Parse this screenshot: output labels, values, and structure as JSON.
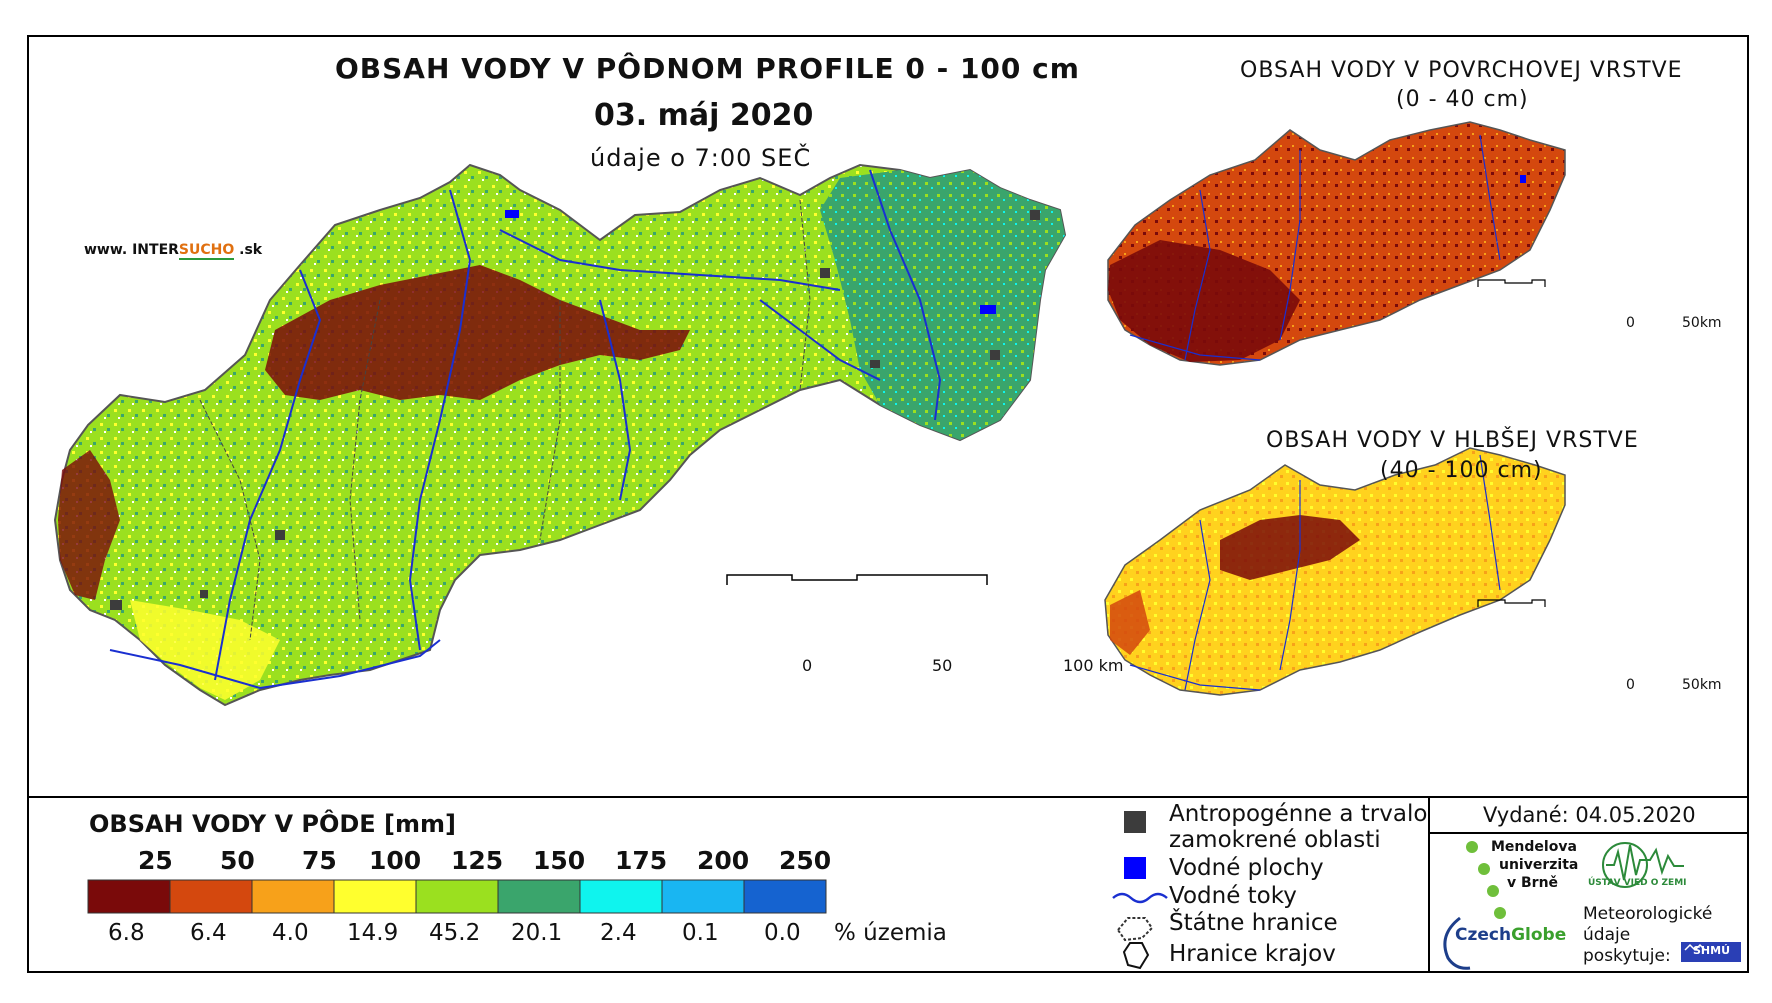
{
  "main_map": {
    "title": "OBSAH VODY V PÔDNOM PROFILE 0 - 100 cm",
    "date": "03. máj 2020",
    "time_note": "údaje o 7:00 SEČ",
    "website_prefix": "www. INTER",
    "website_brand": "SUCHO",
    "website_suffix": " .sk",
    "scale_labels": [
      "0",
      "50",
      "100 km"
    ]
  },
  "inset_surface": {
    "title_line1": "OBSAH VODY V POVRCHOVEJ VRSTVE",
    "title_line2": "(0 - 40 cm)",
    "scale_labels": [
      "0",
      "50km"
    ]
  },
  "inset_deep": {
    "title_line1": "OBSAH VODY V HLBŠEJ VRSTVE",
    "title_line2": "(40 - 100 cm)",
    "scale_labels": [
      "0",
      "50km"
    ]
  },
  "legend": {
    "title": "OBSAH VODY V PÔDE [mm]",
    "thresholds": [
      "25",
      "50",
      "75",
      "100",
      "125",
      "150",
      "175",
      "200",
      "250"
    ],
    "classes": [
      {
        "color": "#7a0a0a",
        "percent": "6.8"
      },
      {
        "color": "#d4480e",
        "percent": "6.4"
      },
      {
        "color": "#f7a11a",
        "percent": "4.0"
      },
      {
        "color": "#ffff2e",
        "percent": "14.9"
      },
      {
        "color": "#9be01f",
        "percent": "45.2"
      },
      {
        "color": "#3aa56c",
        "percent": "20.1"
      },
      {
        "color": "#0ff4ee",
        "percent": "2.4"
      },
      {
        "color": "#19b6f2",
        "percent": "0.1"
      },
      {
        "color": "#1563d0",
        "percent": "0.0"
      }
    ],
    "percent_unit": "% územia"
  },
  "symbols": {
    "anthropogenic_line1": "Antropogénne a trvalo",
    "anthropogenic_line2": "zamokrené oblasti",
    "water_areas": "Vodné plochy",
    "rivers": "Vodné toky",
    "state_border": "Štátne hranice",
    "region_border": "Hranice krajov"
  },
  "credits": {
    "issued": "Vydané: 04.05.2020",
    "mendelu_line1": "Mendelova",
    "mendelu_line2": "univerzita",
    "mendelu_line3": "v Brně",
    "czechglobe_a": "Czech",
    "czechglobe_b": "Globe",
    "ustav": "ÚSTAV VIED O ZEMI",
    "meteo_line1": "Meteorologické",
    "meteo_line2": "údaje",
    "meteo_line3": "poskytuje:",
    "shmu": "SHMÚ"
  },
  "colors": {
    "anthropogenic": "#3c3c3c",
    "water": "#0000ff",
    "river": "#1a2fd0",
    "border": "#444444"
  }
}
